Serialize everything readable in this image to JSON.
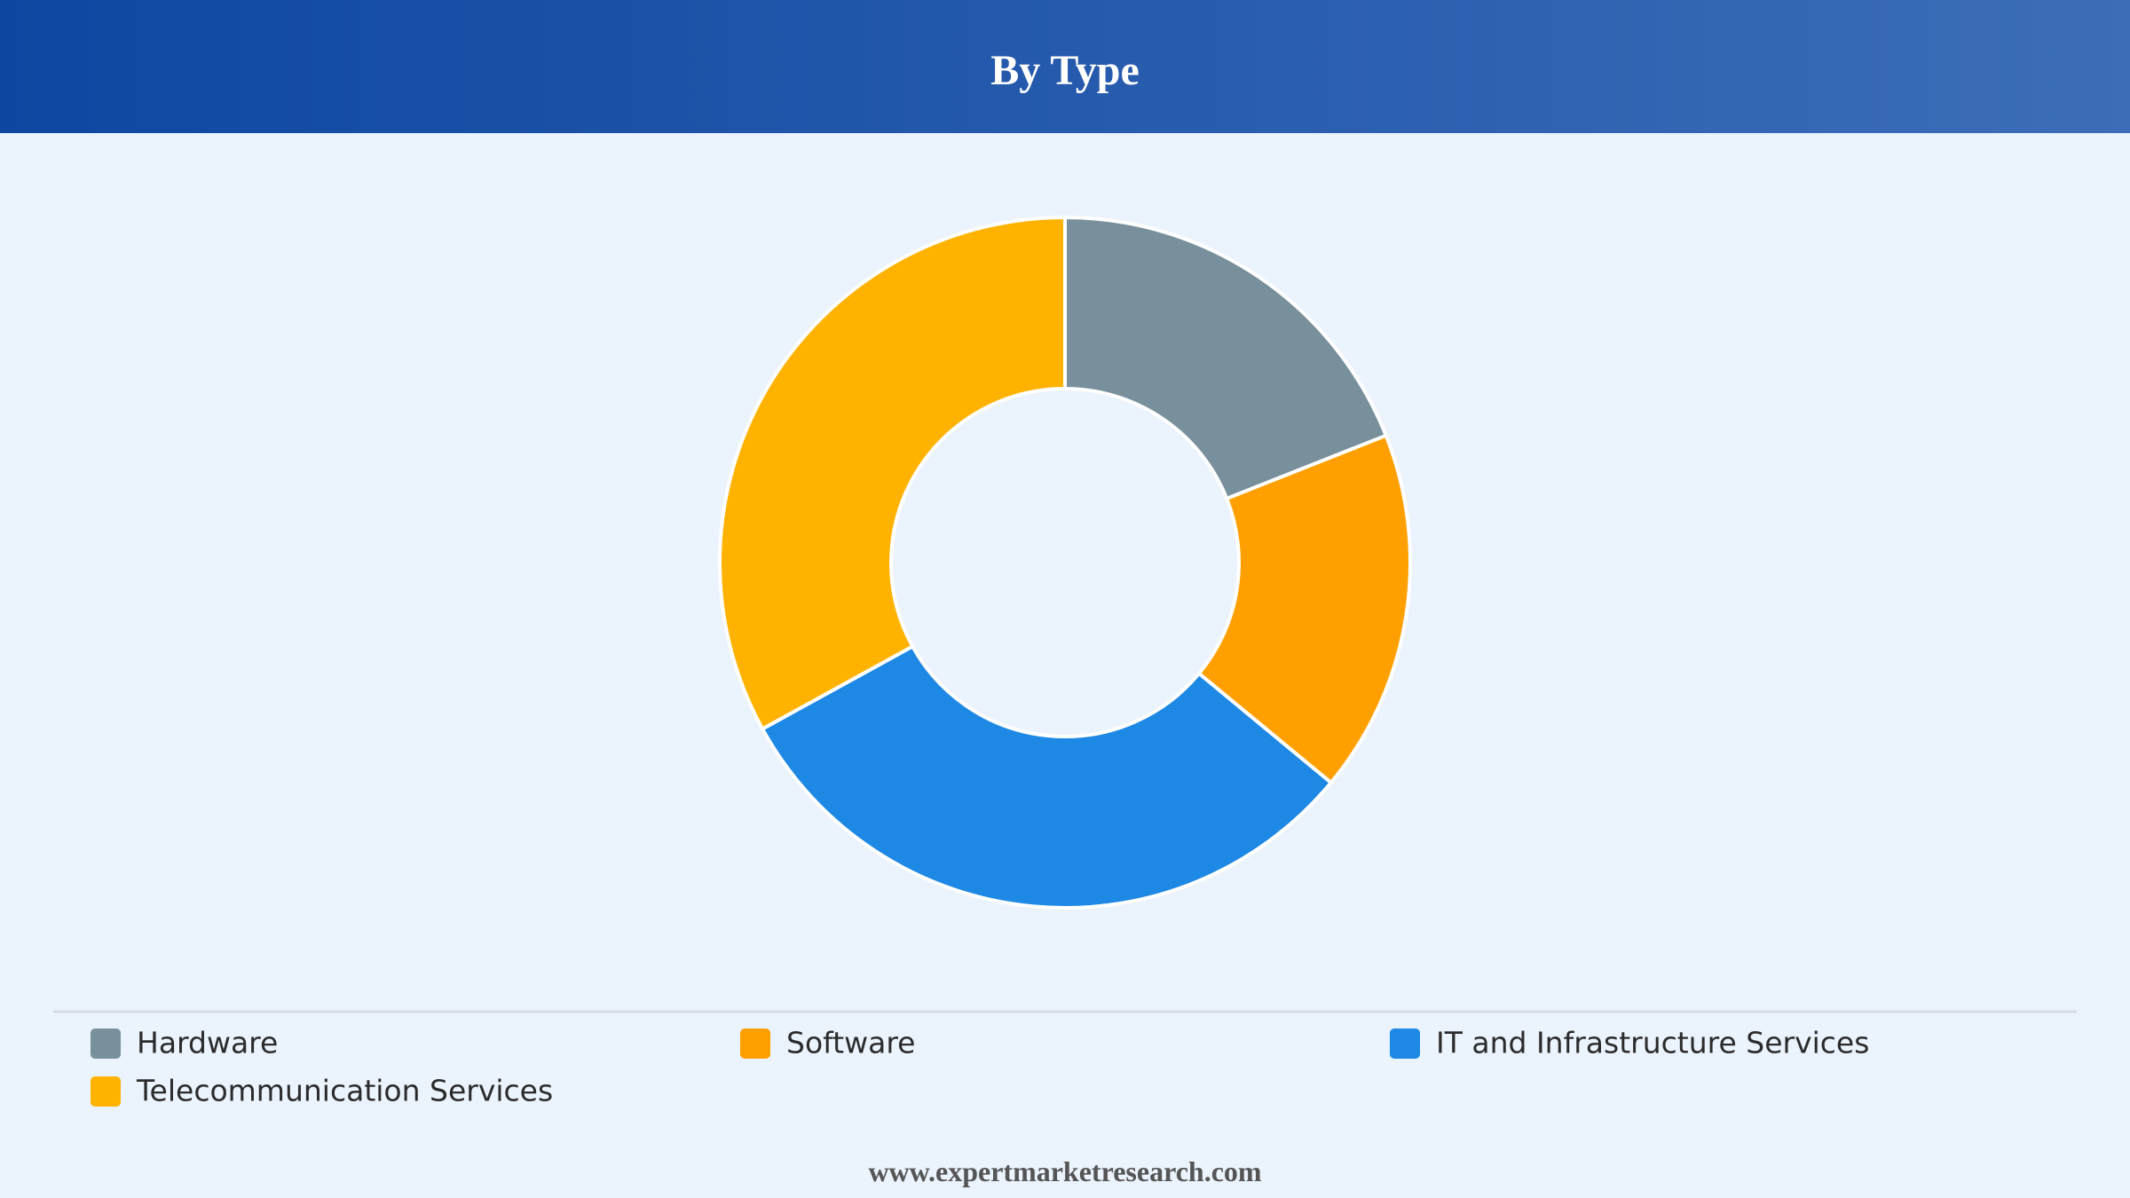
{
  "chart_data": {
    "type": "donut",
    "title": "By Type",
    "categories": [
      "Hardware",
      "Software",
      "IT and Infrastructure Services",
      "Telecommunication Services"
    ],
    "values": [
      19,
      17,
      31,
      33
    ],
    "colors": [
      "#78909c",
      "#ffa000",
      "#1e88e5",
      "#ffb300"
    ]
  },
  "footer": "www.expertmarketresearch.com"
}
